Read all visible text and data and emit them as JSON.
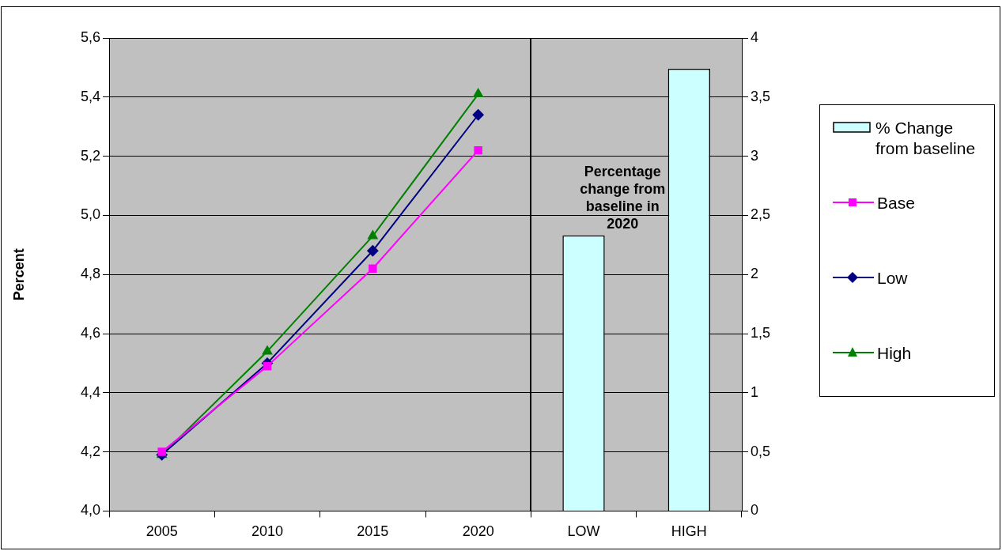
{
  "chart_data": {
    "type": "line",
    "ylabel": "Percent",
    "categories": [
      "2005",
      "2010",
      "2015",
      "2020",
      "LOW",
      "HIGH"
    ],
    "series": [
      {
        "name": "% Change from baseline",
        "type": "bar",
        "axis": "y2",
        "color": "#ccffff",
        "values": [
          null,
          null,
          null,
          null,
          2.33,
          3.74
        ]
      },
      {
        "name": "Base",
        "color": "#ff00ff",
        "marker": "square",
        "values": [
          4.2,
          4.49,
          4.82,
          5.22,
          null,
          null
        ]
      },
      {
        "name": "Low",
        "color": "#000080",
        "marker": "diamond",
        "values": [
          4.19,
          4.5,
          4.88,
          5.34,
          null,
          null
        ]
      },
      {
        "name": "High",
        "color": "#008000",
        "marker": "triangle",
        "values": [
          4.19,
          4.54,
          4.93,
          5.41,
          null,
          null
        ]
      }
    ],
    "ylim": [
      4.0,
      5.6
    ],
    "yticks": [
      {
        "value": 4.0,
        "label": "4,0"
      },
      {
        "value": 4.2,
        "label": "4,2"
      },
      {
        "value": 4.4,
        "label": "4,4"
      },
      {
        "value": 4.6,
        "label": "4,6"
      },
      {
        "value": 4.8,
        "label": "4,8"
      },
      {
        "value": 5.0,
        "label": "5,0"
      },
      {
        "value": 5.2,
        "label": "5,2"
      },
      {
        "value": 5.4,
        "label": "5,4"
      },
      {
        "value": 5.6,
        "label": "5,6"
      }
    ],
    "y2lim": [
      0,
      4
    ],
    "y2ticks": [
      0,
      {
        "value": 0.5,
        "label": "0,5"
      },
      1,
      {
        "value": 1.5,
        "label": "1,5"
      },
      2,
      {
        "value": 2.5,
        "label": "2,5"
      },
      3,
      {
        "value": 3.5,
        "label": "3,5"
      },
      4
    ],
    "annotations": [
      "Percentage change from baseline in 2020"
    ],
    "grid": "y",
    "legend": "right"
  }
}
